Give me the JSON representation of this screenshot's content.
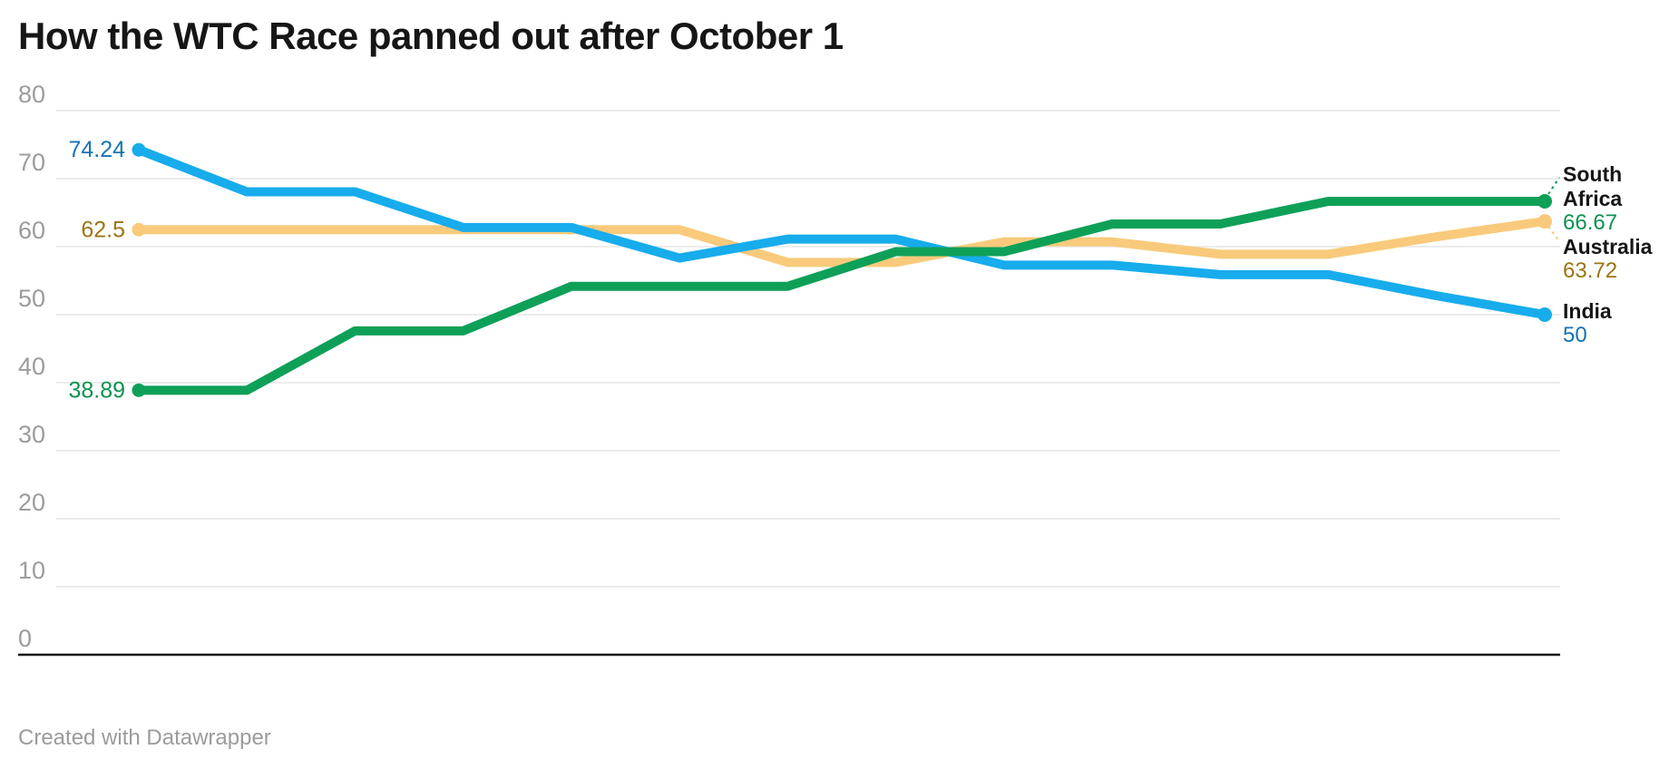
{
  "header": {
    "title": "How the WTC Race panned out after October 1"
  },
  "footer": {
    "text": "Created with Datawrapper"
  },
  "chart_data": {
    "type": "line",
    "title": "How the WTC Race panned out after October 1",
    "xlabel": "",
    "ylabel": "",
    "x_axis": {
      "tick_labels_visible": false,
      "points_per_series": 14
    },
    "y_axis": {
      "range": [
        0,
        80
      ],
      "ticks": [
        0,
        10,
        20,
        30,
        40,
        50,
        60,
        70,
        80
      ],
      "gridlines": true
    },
    "legend_position": "right-end-labels",
    "series": [
      {
        "id": "australia",
        "name": "Australia",
        "name_lines": [
          "Australia"
        ],
        "color": "#F9CA7B",
        "label_color": "#9C7412",
        "start_label": "62.5",
        "end_value_label": "63.72",
        "values": [
          62.5,
          62.5,
          62.5,
          62.5,
          62.5,
          62.5,
          57.69,
          57.69,
          60.71,
          60.71,
          58.89,
          58.89,
          61.46,
          63.72
        ]
      },
      {
        "id": "india",
        "name": "India",
        "name_lines": [
          "India"
        ],
        "color": "#17ACEC",
        "label_color": "#1573B2",
        "start_label": "74.24",
        "end_value_label": "50",
        "values": [
          74.24,
          68.06,
          68.06,
          62.82,
          62.82,
          58.33,
          61.11,
          61.11,
          57.29,
          57.29,
          55.88,
          55.88,
          52.78,
          50
        ]
      },
      {
        "id": "south-africa",
        "name": "South Africa",
        "name_lines": [
          "South",
          "Africa"
        ],
        "color": "#0FA058",
        "label_color": "#0C9150",
        "start_label": "38.89",
        "end_value_label": "66.67",
        "values": [
          38.89,
          38.89,
          47.62,
          47.62,
          54.17,
          54.17,
          54.17,
          59.26,
          59.26,
          63.33,
          63.33,
          66.67,
          66.67,
          66.67
        ]
      }
    ],
    "colors": {
      "title": "#161616",
      "tick_label": "#9C9C9C",
      "gridline": "#E6E6E6",
      "zero_axis": "#161616",
      "footer": "#9B9B9B",
      "background": "#FFFFFF"
    }
  }
}
